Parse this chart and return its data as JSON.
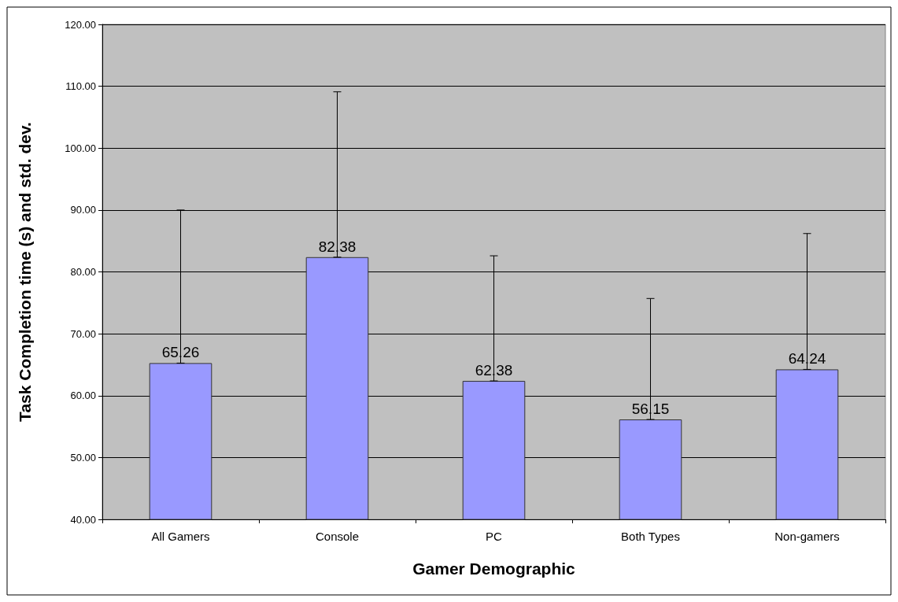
{
  "chart_data": {
    "type": "bar",
    "xlabel": "Gamer Demographic",
    "ylabel": "Task Completion time (s) and std. dev.",
    "categories": [
      "All Gamers",
      "Console",
      "PC",
      "Both Types",
      "Non-gamers"
    ],
    "values": [
      65.26,
      82.38,
      62.38,
      56.15,
      64.24
    ],
    "color": "#9999ff",
    "errors": [
      [
        65.26,
        90.0
      ],
      [
        82.38,
        109.1
      ],
      [
        62.38,
        82.6
      ],
      [
        56.15,
        75.7
      ],
      [
        64.24,
        86.2
      ]
    ],
    "data_labels": true,
    "ylim": [
      40,
      120
    ],
    "yticks": [
      {
        "value": 40,
        "label": "40.00"
      },
      {
        "value": 50,
        "label": "50.00"
      },
      {
        "value": 60,
        "label": "60.00"
      },
      {
        "value": 70,
        "label": "70.00"
      },
      {
        "value": 80,
        "label": "80.00"
      },
      {
        "value": 90,
        "label": "90.00"
      },
      {
        "value": 100,
        "label": "100.00"
      },
      {
        "value": 110,
        "label": "110.00"
      },
      {
        "value": 120,
        "label": "120.00"
      }
    ],
    "grid": "y"
  }
}
